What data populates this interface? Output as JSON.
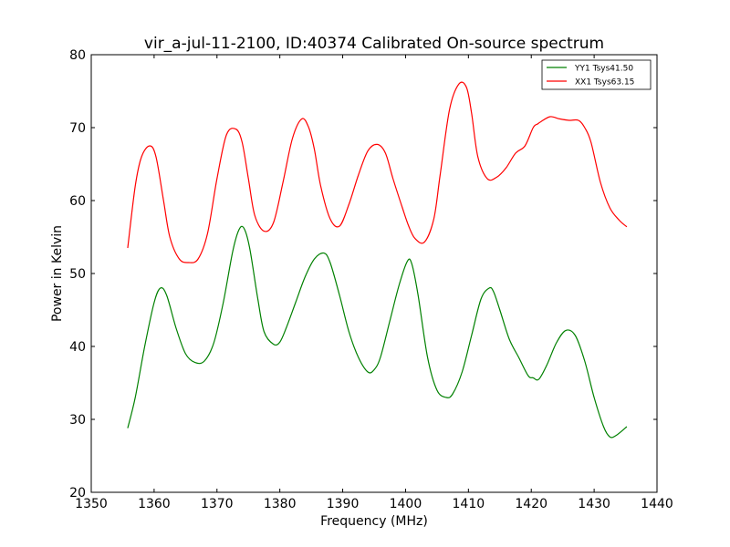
{
  "chart_data": {
    "type": "line",
    "title": "vir_a-jul-11-2100, ID:40374 Calibrated On-source spectrum",
    "xlabel": "Frequency (MHz)",
    "ylabel": "Power in Kelvin",
    "xlim": [
      1350,
      1440
    ],
    "ylim": [
      20,
      80
    ],
    "xticks": [
      1350,
      1360,
      1370,
      1380,
      1390,
      1400,
      1410,
      1420,
      1430,
      1440
    ],
    "yticks": [
      20,
      30,
      40,
      50,
      60,
      70,
      80
    ],
    "grid": false,
    "legend_position": "top-right",
    "series": [
      {
        "name": "YY1 Tsys41.50",
        "color": "#008000",
        "x": [
          1355.8,
          1357,
          1358.5,
          1360,
          1361,
          1362,
          1363.5,
          1365,
          1366.5,
          1368,
          1369.5,
          1371,
          1372.5,
          1373.5,
          1374.3,
          1375.2,
          1376.5,
          1377.5,
          1379,
          1380,
          1381,
          1382.5,
          1384,
          1385.5,
          1387,
          1388,
          1389.5,
          1391,
          1392.5,
          1394,
          1395,
          1396,
          1397.5,
          1399,
          1400.3,
          1401,
          1402,
          1403.5,
          1405,
          1406.5,
          1407.5,
          1409,
          1410.5,
          1412,
          1413.3,
          1414,
          1415,
          1416.5,
          1418,
          1419.5,
          1420.3,
          1421.2,
          1422.5,
          1424,
          1425.5,
          1427,
          1428.5,
          1430,
          1431.5,
          1432.5,
          1433.5,
          1435.2
        ],
        "y": [
          28.8,
          33,
          40,
          46,
          48,
          47,
          42.5,
          39,
          37.8,
          38,
          40.5,
          46,
          53,
          56,
          56.2,
          53.5,
          46.5,
          42,
          40.3,
          40.6,
          42.5,
          46,
          49.5,
          52,
          52.8,
          51.5,
          47,
          42,
          38.5,
          36.5,
          36.8,
          38.5,
          43.5,
          48.5,
          51.7,
          51.3,
          47,
          38.5,
          34,
          33,
          33.5,
          36.5,
          41.5,
          46.5,
          48,
          47.5,
          45,
          41,
          38.5,
          36,
          35.7,
          35.5,
          37.5,
          40.5,
          42.2,
          41.5,
          38,
          33,
          29,
          27.6,
          27.8,
          29
        ]
      },
      {
        "name": "XX1 Tsys63.15",
        "color": "#ff0000",
        "x": [
          1355.8,
          1357,
          1358,
          1359.3,
          1360.3,
          1361.5,
          1362.5,
          1364,
          1365.5,
          1367,
          1368.5,
          1370,
          1371.5,
          1373,
          1374,
          1375,
          1376,
          1377.5,
          1379,
          1380.5,
          1382,
          1383.5,
          1384.6,
          1385.5,
          1386.5,
          1388,
          1389.5,
          1391,
          1392.5,
          1394,
          1395.5,
          1396.8,
          1398,
          1399.5,
          1400.5,
          1401.5,
          1403,
          1404.5,
          1405.5,
          1407,
          1408.5,
          1409.7,
          1410.5,
          1411.5,
          1413,
          1414.5,
          1416,
          1417.5,
          1419,
          1420.3,
          1421,
          1421.5,
          1423,
          1424.5,
          1426,
          1427.5,
          1428.5,
          1429.5,
          1431,
          1432.5,
          1434,
          1435.2
        ],
        "y": [
          53.5,
          62,
          66,
          67.5,
          66,
          60,
          55,
          52,
          51.5,
          52,
          55.5,
          63,
          69,
          69.8,
          68,
          63,
          58,
          55.8,
          57,
          62.5,
          68.5,
          71.2,
          70,
          67,
          62,
          57.5,
          56.5,
          59.5,
          63.5,
          66.8,
          67.7,
          66.5,
          63,
          59,
          56.5,
          54.8,
          54.3,
          57.5,
          63.5,
          72.5,
          76,
          75.5,
          72,
          66,
          63,
          63.2,
          64.5,
          66.5,
          67.5,
          70,
          70.5,
          70.8,
          71.5,
          71.2,
          71,
          71,
          70,
          68,
          62.5,
          59,
          57.3,
          56.4
        ]
      }
    ]
  }
}
